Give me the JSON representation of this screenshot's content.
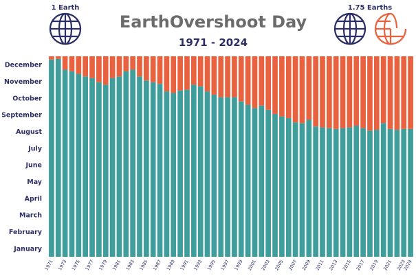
{
  "chart_data": {
    "type": "bar",
    "title": "EarthOvershoot Day",
    "subtitle": "1971 - 2024",
    "stacked": true,
    "y_categories": [
      "January",
      "February",
      "March",
      "April",
      "May",
      "June",
      "July",
      "August",
      "September",
      "October",
      "November",
      "December"
    ],
    "ylim": [
      0,
      12
    ],
    "x": [
      1971,
      1972,
      1973,
      1974,
      1975,
      1976,
      1977,
      1978,
      1979,
      1980,
      1981,
      1982,
      1983,
      1984,
      1985,
      1986,
      1987,
      1988,
      1989,
      1990,
      1991,
      1992,
      1993,
      1994,
      1995,
      1996,
      1997,
      1998,
      1999,
      2000,
      2001,
      2002,
      2003,
      2004,
      2005,
      2006,
      2007,
      2008,
      2009,
      2010,
      2011,
      2012,
      2013,
      2014,
      2015,
      2016,
      2017,
      2018,
      2019,
      2020,
      2021,
      2022,
      2023,
      2024
    ],
    "x_tick_labels": [
      "1971",
      "1973",
      "1975",
      "1977",
      "1979",
      "1981",
      "1983",
      "1985",
      "1987",
      "1989",
      "1991",
      "1993",
      "1995",
      "1997",
      "1999",
      "2001",
      "2003",
      "2005",
      "2007",
      "2009",
      "2011",
      "2013",
      "2015",
      "2017",
      "2019",
      "2021",
      "2023",
      "2024"
    ],
    "series": [
      {
        "values": [
          11.8,
          11.85,
          11.2,
          11.1,
          10.95,
          10.8,
          10.7,
          10.45,
          10.3,
          10.7,
          10.8,
          11.1,
          11.2,
          10.8,
          10.55,
          10.45,
          10.35,
          9.9,
          9.8,
          9.95,
          10.0,
          10.3,
          10.2,
          9.9,
          9.7,
          9.55,
          9.55,
          9.55,
          9.3,
          9.1,
          8.9,
          9.05,
          8.8,
          8.55,
          8.4,
          8.3,
          8.05,
          8.0,
          8.2,
          7.8,
          7.75,
          7.7,
          7.65,
          7.7,
          7.75,
          7.85,
          7.7,
          7.55,
          7.6,
          8.0,
          7.65,
          7.6,
          7.65,
          7.65
        ]
      },
      {
        "values": [
          0.2,
          0.15,
          0.8,
          0.9,
          1.05,
          1.2,
          1.3,
          1.55,
          1.7,
          1.3,
          1.2,
          0.9,
          0.8,
          1.2,
          1.45,
          1.55,
          1.65,
          2.1,
          2.2,
          2.05,
          2.0,
          1.7,
          1.8,
          2.1,
          2.3,
          2.45,
          2.45,
          2.45,
          2.7,
          2.9,
          3.1,
          2.95,
          3.2,
          3.45,
          3.6,
          3.7,
          3.95,
          4.0,
          3.8,
          4.2,
          4.25,
          4.3,
          4.35,
          4.3,
          4.25,
          4.15,
          4.3,
          4.45,
          4.4,
          4.0,
          4.35,
          4.4,
          4.35,
          4.35
        ]
      }
    ],
    "colors": {
      "series1": "#3f9e9b",
      "series2": "#e8623f",
      "text": "#2c2f66",
      "title": "#6b6b6b"
    },
    "grid": false,
    "legend": "none"
  },
  "globes": {
    "left": {
      "label": "1 Earth",
      "icon": "globe-icon"
    },
    "right": {
      "label": "1.75 Earths",
      "icon": "globe-icon",
      "partial_icon": "partial-globe-icon"
    }
  }
}
